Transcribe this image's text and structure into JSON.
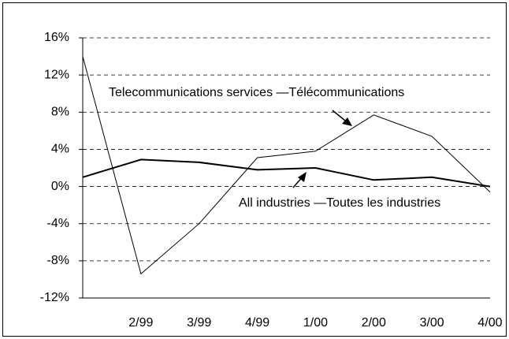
{
  "chart_data": {
    "type": "line",
    "categories": [
      null,
      "2/99",
      "3/99",
      "4/99",
      "1/00",
      "2/00",
      "3/00",
      "4/00"
    ],
    "series": [
      {
        "name": "Telecommunications services —Télécommunications",
        "color": "#000000",
        "width": 1,
        "values": [
          14,
          -9.4,
          -4,
          3.1,
          3.8,
          7.7,
          5.4,
          -0.6
        ]
      },
      {
        "name": "All industries —Toutes les industries",
        "color": "#000000",
        "width": 2,
        "values": [
          1,
          2.9,
          2.6,
          1.8,
          2,
          0.7,
          1,
          0
        ]
      }
    ],
    "ylim": [
      -12,
      16
    ],
    "yticks": [
      {
        "value": -12,
        "label": "-12%"
      },
      {
        "value": -8,
        "label": "-8%"
      },
      {
        "value": -4,
        "label": "-4%"
      },
      {
        "value": 0,
        "label": "0%"
      },
      {
        "value": 4,
        "label": "4%"
      },
      {
        "value": 8,
        "label": "8%"
      },
      {
        "value": 12,
        "label": "12%"
      },
      {
        "value": 16,
        "label": "16%"
      }
    ],
    "grid": true
  }
}
